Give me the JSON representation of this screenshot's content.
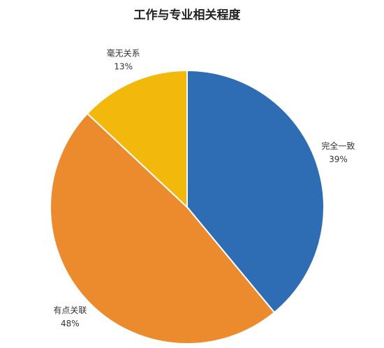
{
  "chart_data": {
    "type": "pie",
    "title": "工作与专业相关程度",
    "categories": [
      "完全一致",
      "有点关联",
      "毫无关系"
    ],
    "values": [
      39,
      48,
      13
    ],
    "value_labels": [
      "39%",
      "48%",
      "13%"
    ],
    "colors": [
      "#2e6db4",
      "#ec8a2e",
      "#f2b90c"
    ]
  }
}
